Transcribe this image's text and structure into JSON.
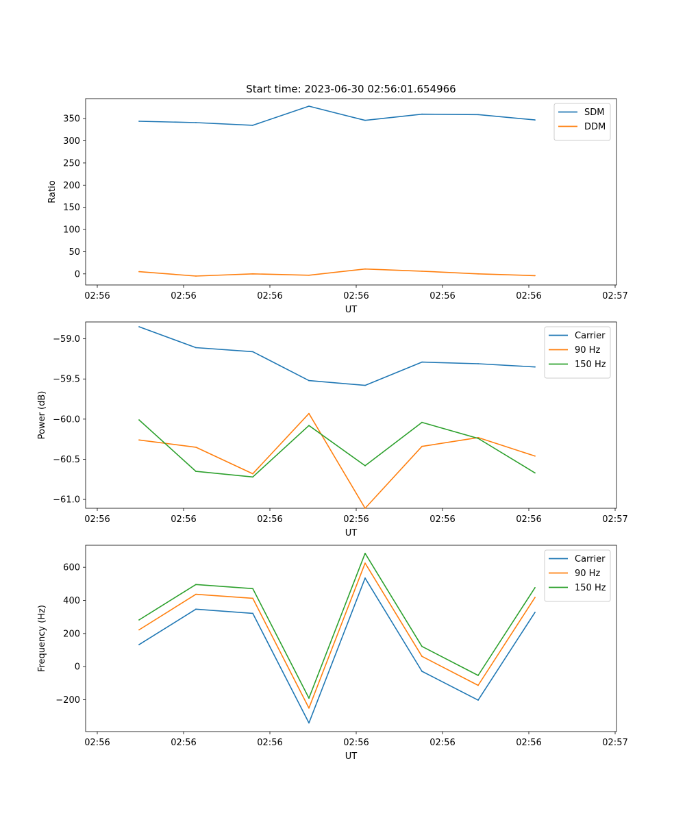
{
  "figure_title": "Start time: 2023-06-30 02:56:01.654966",
  "chart_data": [
    {
      "type": "line",
      "title": "Start time: 2023-06-30 02:56:01.654966",
      "xlabel": "UT",
      "ylabel": "Ratio",
      "x_ticks": [
        "02:56",
        "02:56",
        "02:56",
        "02:56",
        "02:56",
        "02:56",
        "02:57"
      ],
      "y_ticks": [
        0,
        50,
        100,
        150,
        200,
        250,
        300,
        350
      ],
      "ylim": [
        -25,
        395
      ],
      "grid": false,
      "legend_position": "top-right",
      "series": [
        {
          "name": "SDM",
          "color": "#1f77b4",
          "values": [
            344,
            341,
            335,
            378,
            346,
            360,
            359,
            347
          ]
        },
        {
          "name": "DDM",
          "color": "#ff7f0e",
          "values": [
            5,
            -5,
            0,
            -3,
            11,
            6,
            0,
            -4
          ]
        }
      ]
    },
    {
      "type": "line",
      "xlabel": "UT",
      "ylabel": "Power (dB)",
      "x_ticks": [
        "02:56",
        "02:56",
        "02:56",
        "02:56",
        "02:56",
        "02:56",
        "02:57"
      ],
      "y_ticks": [
        "−59.0",
        "−59.5",
        "−60.0",
        "−60.5",
        "−61.0"
      ],
      "y_tick_values": [
        -59.0,
        -59.5,
        -60.0,
        -60.5,
        -61.0
      ],
      "ylim": [
        -61.11,
        -58.79
      ],
      "grid": false,
      "legend_position": "top-right",
      "series": [
        {
          "name": "Carrier",
          "color": "#1f77b4",
          "values": [
            -58.85,
            -59.11,
            -59.16,
            -59.52,
            -59.58,
            -59.29,
            -59.31,
            -59.35
          ]
        },
        {
          "name": "90 Hz",
          "color": "#ff7f0e",
          "values": [
            -60.26,
            -60.35,
            -60.68,
            -59.93,
            -61.11,
            -60.34,
            -60.23,
            -60.46
          ]
        },
        {
          "name": "150 Hz",
          "color": "#2ca02c",
          "values": [
            -60.01,
            -60.65,
            -60.72,
            -60.08,
            -60.58,
            -60.04,
            -60.24,
            -60.67
          ]
        }
      ]
    },
    {
      "type": "line",
      "xlabel": "UT",
      "ylabel": "Frequency (Hz)",
      "x_ticks": [
        "02:56",
        "02:56",
        "02:56",
        "02:56",
        "02:56",
        "02:56",
        "02:57"
      ],
      "y_ticks": [
        "−200",
        "0",
        "200",
        "400",
        "600"
      ],
      "y_tick_values": [
        -200,
        0,
        200,
        400,
        600
      ],
      "ylim": [
        -392,
        733
      ],
      "grid": false,
      "legend_position": "top-right",
      "series": [
        {
          "name": "Carrier",
          "color": "#1f77b4",
          "values": [
            133,
            347,
            322,
            -340,
            535,
            -28,
            -202,
            328
          ]
        },
        {
          "name": "90 Hz",
          "color": "#ff7f0e",
          "values": [
            222,
            437,
            413,
            -250,
            625,
            62,
            -113,
            418
          ]
        },
        {
          "name": "150 Hz",
          "color": "#2ca02c",
          "values": [
            282,
            496,
            471,
            -190,
            684,
            122,
            -53,
            477
          ]
        }
      ]
    }
  ]
}
